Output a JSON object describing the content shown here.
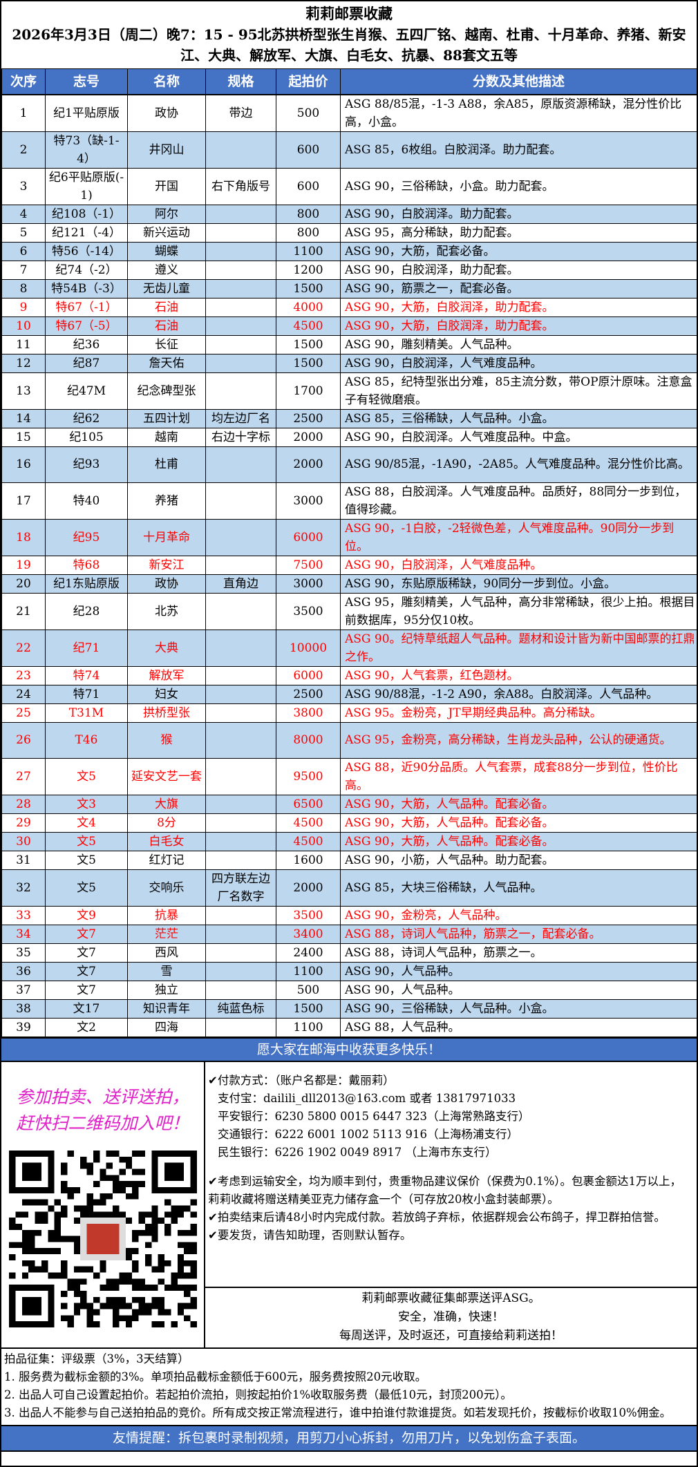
{
  "header": {
    "title": "莉莉邮票收藏",
    "subtitle": "2026年3月3日（周二）晚7：15 - 95北苏拱桥型张生肖猴、五四厂铭、越南、杜甫、十月革命、养猪、新安江、大典、解放军、大旗、白毛女、抗暴、88套文五等"
  },
  "table": {
    "columns": [
      "次序",
      "志号",
      "名称",
      "规格",
      "起拍价",
      "分数及其他描述"
    ],
    "row_colors": {
      "white": "#ffffff",
      "blue": "#bdd7ee",
      "header": "#4472c4",
      "highlight_text": "#ff0000"
    },
    "rows": [
      {
        "no": "1",
        "code": "纪1平贴原版",
        "name": "政协",
        "spec": "带边",
        "price": "500",
        "desc": "ASG 88/85混，-1-3 A88，余A85，原版资源稀缺，混分性价比高，小盒。",
        "red": false,
        "tall": true
      },
      {
        "no": "2",
        "code": "特73（缺-1-4）",
        "name": "井冈山",
        "spec": "",
        "price": "600",
        "desc": "ASG 85，6枚组。白胶润泽。助力配套。",
        "red": false,
        "tall": true
      },
      {
        "no": "3",
        "code": "纪6平贴原版(-1)",
        "name": "开国",
        "spec": "右下角版号",
        "price": "600",
        "desc": "ASG 90，三俗稀缺，小盒。助力配套。",
        "red": false,
        "tall": true
      },
      {
        "no": "4",
        "code": "纪108（-1）",
        "name": "阿尔",
        "spec": "",
        "price": "800",
        "desc": "ASG 90，白胶润泽。助力配套。",
        "red": false,
        "tall": false
      },
      {
        "no": "5",
        "code": "纪121（-4）",
        "name": "新兴运动",
        "spec": "",
        "price": "800",
        "desc": "ASG 95，高分稀缺，助力配套。",
        "red": false,
        "tall": false
      },
      {
        "no": "6",
        "code": "特56（-14）",
        "name": "蝴蝶",
        "spec": "",
        "price": "1100",
        "desc": "ASG 90，大筋，配套必备。",
        "red": false,
        "tall": false
      },
      {
        "no": "7",
        "code": "纪74（-2）",
        "name": "遵义",
        "spec": "",
        "price": "1200",
        "desc": "ASG 90，白胶润泽，助力配套。",
        "red": false,
        "tall": false
      },
      {
        "no": "8",
        "code": "特54B（-3）",
        "name": "无齿儿童",
        "spec": "",
        "price": "1500",
        "desc": "ASG 90，筋票之一，配套必备。",
        "red": false,
        "tall": false
      },
      {
        "no": "9",
        "code": "特67（-1）",
        "name": "石油",
        "spec": "",
        "price": "4000",
        "desc": "ASG 90，大筋，白胶润泽，助力配套。",
        "red": true,
        "tall": false
      },
      {
        "no": "10",
        "code": "特67（-5）",
        "name": "石油",
        "spec": "",
        "price": "4500",
        "desc": "ASG 90，大筋，白胶润泽，助力配套。",
        "red": true,
        "tall": false
      },
      {
        "no": "11",
        "code": "纪36",
        "name": "长征",
        "spec": "",
        "price": "1500",
        "desc": "ASG 90，雕刻精美。人气品种。",
        "red": false,
        "tall": false
      },
      {
        "no": "12",
        "code": "纪87",
        "name": "詹天佑",
        "spec": "",
        "price": "1500",
        "desc": "ASG 90，白胶润泽，人气难度品种。",
        "red": false,
        "tall": false
      },
      {
        "no": "13",
        "code": "纪47M",
        "name": "纪念碑型张",
        "spec": "",
        "price": "1700",
        "desc": "ASG 85，纪特型张出分难，85主流分数，带OP原汁原味。注意盒子有轻微磨痕。",
        "red": false,
        "tall": true
      },
      {
        "no": "14",
        "code": "纪62",
        "name": "五四计划",
        "spec": "均左边厂名",
        "price": "2500",
        "desc": "ASG 85，三俗稀缺，人气品种。小盒。",
        "red": false,
        "tall": false
      },
      {
        "no": "15",
        "code": "纪105",
        "name": "越南",
        "spec": "右边十字标",
        "price": "2000",
        "desc": "ASG 90，白胶润泽。人气难度品种。中盒。",
        "red": false,
        "tall": false
      },
      {
        "no": "16",
        "code": "纪93",
        "name": "杜甫",
        "spec": "",
        "price": "2000",
        "desc": "ASG 90/85混，-1A90，-2A85。人气难度品种。混分性价比高。",
        "red": false,
        "tall": true
      },
      {
        "no": "17",
        "code": "特40",
        "name": "养猪",
        "spec": "",
        "price": "3000",
        "desc": "ASG 88，白胶润泽。人气难度品种。品质好，88同分一步到位，值得珍藏。",
        "red": false,
        "tall": true
      },
      {
        "no": "18",
        "code": "纪95",
        "name": "十月革命",
        "spec": "",
        "price": "6000",
        "desc": "ASG 90，-1白胶，-2轻微色差，人气难度品种。90同分一步到位。",
        "red": true,
        "tall": true
      },
      {
        "no": "19",
        "code": "特68",
        "name": "新安江",
        "spec": "",
        "price": "7500",
        "desc": "ASG 90，白胶润泽，人气难度品种。",
        "red": true,
        "tall": false
      },
      {
        "no": "20",
        "code": "纪1东贴原版",
        "name": "政协",
        "spec": "直角边",
        "price": "3000",
        "desc": "ASG 90，东贴原版稀缺，90同分一步到位。小盒。",
        "red": false,
        "tall": false
      },
      {
        "no": "21",
        "code": "纪28",
        "name": "北苏",
        "spec": "",
        "price": "3500",
        "desc": "ASG 95，雕刻精美，人气品种，高分非常稀缺，很少上拍。根据目前数据库，95分仅10枚。",
        "red": false,
        "tall": true
      },
      {
        "no": "22",
        "code": "纪71",
        "name": "大典",
        "spec": "",
        "price": "10000",
        "desc": "ASG 90。纪特草纸超人气品种。题材和设计皆为新中国邮票的扛鼎之作。",
        "red": true,
        "tall": true
      },
      {
        "no": "23",
        "code": "特74",
        "name": "解放军",
        "spec": "",
        "price": "6000",
        "desc": "ASG 90，人气套票，红色题材。",
        "red": true,
        "tall": false
      },
      {
        "no": "24",
        "code": "特71",
        "name": "妇女",
        "spec": "",
        "price": "2500",
        "desc": "ASG 90/88混，-1-2 A90，余A88。白胶润泽。人气品种。",
        "red": false,
        "tall": false
      },
      {
        "no": "25",
        "code": "T31M",
        "name": "拱桥型张",
        "spec": "",
        "price": "3800",
        "desc": "ASG 95。金粉亮，JT早期经典品种。高分稀缺。",
        "red": true,
        "tall": false
      },
      {
        "no": "26",
        "code": "T46",
        "name": "猴",
        "spec": "",
        "price": "8000",
        "desc": "ASG 95，金粉亮，高分稀缺，生肖龙头品种，公认的硬通货。",
        "red": true,
        "tall": true
      },
      {
        "no": "27",
        "code": "文5",
        "name": "延安文艺一套",
        "spec": "",
        "price": "9500",
        "desc": "ASG 88，近90分品质。人气套票，成套88分一步到位，性价比高。",
        "red": true,
        "tall": true
      },
      {
        "no": "28",
        "code": "文3",
        "name": "大旗",
        "spec": "",
        "price": "6500",
        "desc": "ASG 90，大筋，人气品种。配套必备。",
        "red": true,
        "tall": false
      },
      {
        "no": "29",
        "code": "文4",
        "name": "8分",
        "spec": "",
        "price": "4500",
        "desc": "ASG 90，大筋，人气品种。配套必备。",
        "red": true,
        "tall": false
      },
      {
        "no": "30",
        "code": "文5",
        "name": "白毛女",
        "spec": "",
        "price": "4500",
        "desc": "ASG 90，大筋，人气品种。配套必备。",
        "red": true,
        "tall": false
      },
      {
        "no": "31",
        "code": "文5",
        "name": "红灯记",
        "spec": "",
        "price": "1600",
        "desc": "ASG 90，小筋，人气品种。助力配套。",
        "red": false,
        "tall": false
      },
      {
        "no": "32",
        "code": "文5",
        "name": "交响乐",
        "spec": "四方联左边厂名数字",
        "price": "2000",
        "desc": "ASG 85，大块三俗稀缺，人气品种。",
        "red": false,
        "tall": true
      },
      {
        "no": "33",
        "code": "文9",
        "name": "抗暴",
        "spec": "",
        "price": "3500",
        "desc": "ASG 90，金粉亮，人气品种。",
        "red": true,
        "tall": false
      },
      {
        "no": "34",
        "code": "文7",
        "name": "茫茫",
        "spec": "",
        "price": "3400",
        "desc": "ASG 88，诗词人气品种，筋票之一，配套必备。",
        "red": true,
        "tall": false
      },
      {
        "no": "35",
        "code": "文7",
        "name": "西风",
        "spec": "",
        "price": "2400",
        "desc": "ASG 88，诗词人气品种，筋票之一。",
        "red": false,
        "tall": false
      },
      {
        "no": "36",
        "code": "文7",
        "name": "雪",
        "spec": "",
        "price": "1100",
        "desc": "ASG 90，人气品种。",
        "red": false,
        "tall": false
      },
      {
        "no": "37",
        "code": "文7",
        "name": "独立",
        "spec": "",
        "price": "500",
        "desc": "ASG 90，人气品种。",
        "red": false,
        "tall": false
      },
      {
        "no": "38",
        "code": "文17",
        "name": "知识青年",
        "spec": "纯蓝色标",
        "price": "1500",
        "desc": "ASG 90，三俗稀缺，人气品种。小盒。",
        "red": false,
        "tall": false
      },
      {
        "no": "39",
        "code": "文2",
        "name": "四海",
        "spec": "",
        "price": "1100",
        "desc": "ASG 88，人气品种。",
        "red": false,
        "tall": false
      }
    ]
  },
  "banner": "愿大家在邮海中收获更多快乐！",
  "promo": {
    "line1": "参加拍卖、送评送拍，",
    "line2": "赶快扫二维码加入吧！",
    "color": "#e020c8"
  },
  "payment": {
    "heading": "✔付款方式：（账户名都是：戴丽莉）",
    "lines": [
      "支付宝：dailili_dll2013@163.com  或者 13817971033",
      "平安银行：6230 5800 0015 6447 323（上海常熟路支行）",
      "交通银行：6222 6001 1002 5113 916（上海杨浦支行）",
      "民生银行：6226 1902 0049 8917 （上海市东支行）"
    ],
    "notes": [
      "✔考虑到运输安全，均为顺丰到付，贵重物品建议保价（保费为0.1%）。包裹金额达1万以上，莉莉收藏将赠送精美亚克力储存盒一个（可存放20枚小盒封装邮票）。",
      "✔拍卖结束后请48小时内完成付款。若放鸽子弃标，依据群规会公布鸽子，捍卫群拍信誉。",
      "✔要发货，请告知助理，否则默认暂存。"
    ]
  },
  "asg": [
    "莉莉邮票收藏征集邮票送评ASG。",
    "安全，准确，快速！",
    "每周送评，及时返还，可直接给莉莉送拍！"
  ],
  "rules": [
    "拍品征集：评级票（3%，3天结算）",
    "1. 服务费为截标金额的3%。单项拍品截标金额低于600元，服务费按照20元收取。",
    "2. 出品人可自己设置起拍价。若起拍价流拍，则按起拍价1%收取服务费（最低10元，封顶200元）。",
    "3. 出品人不能参与自己送拍拍品的竞价。所有成交按正常流程进行，谁中拍谁付款谁提货。如若发现托价，按截标价收取10%佣金。"
  ],
  "footer": "友情提醒：拆包裹时录制视频，用剪刀小心拆封，勿用刀片，以免划伤盒子表面。",
  "icons": {
    "qr": "qr-code-icon",
    "check": "checkmark-icon"
  }
}
